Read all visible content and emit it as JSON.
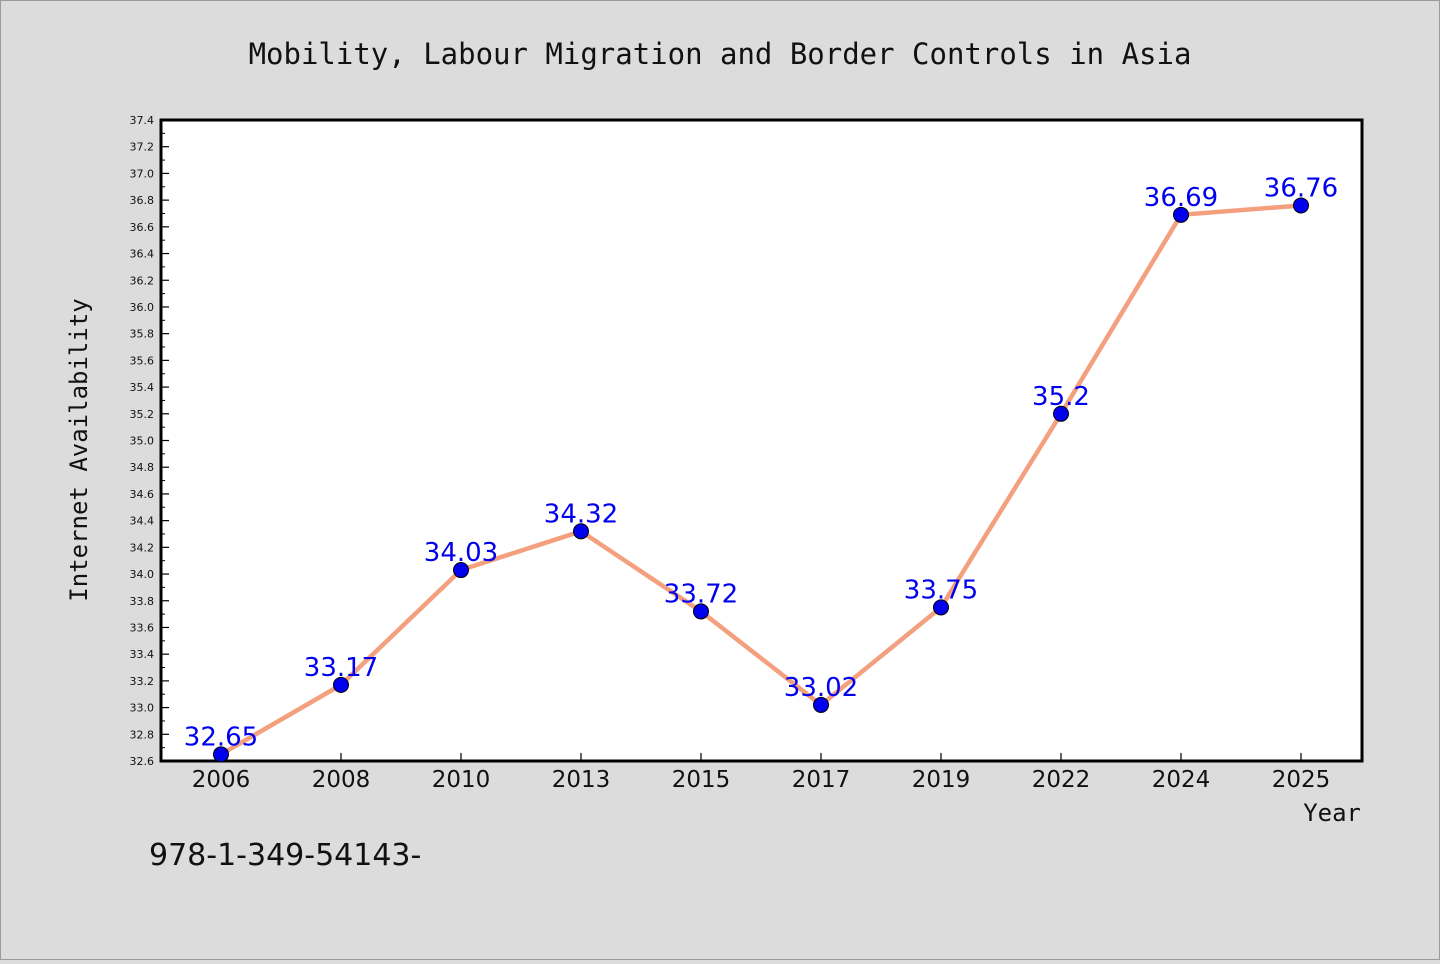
{
  "chart_data": {
    "type": "line",
    "title": "Mobility, Labour Migration and Border Controls in Asia",
    "xlabel": "Year",
    "ylabel": "Internet Availability",
    "categories": [
      "2006",
      "2008",
      "2010",
      "2013",
      "2015",
      "2017",
      "2019",
      "2022",
      "2024",
      "2025"
    ],
    "series": [
      {
        "values": [
          32.65,
          33.17,
          34.03,
          34.32,
          33.72,
          33.02,
          33.75,
          35.2,
          36.69,
          36.76
        ],
        "labels": [
          "32.65",
          "33.17",
          "34.03",
          "34.32",
          "33.72",
          "33.02",
          "33.75",
          "35.2",
          "36.69",
          "36.76"
        ],
        "line_color": "#f4a07e",
        "marker_color": "#0000ee"
      }
    ],
    "ylim": [
      32.6,
      37.4
    ],
    "yticks": [
      "32.6",
      "32.8",
      "33.0",
      "33.2",
      "33.4",
      "33.6",
      "33.8",
      "34.0",
      "34.2",
      "34.4",
      "34.6",
      "34.8",
      "35.0",
      "35.2",
      "35.4",
      "35.6",
      "35.8",
      "36.0",
      "36.2",
      "36.4",
      "36.6",
      "36.8",
      "37.0",
      "37.2",
      "37.4"
    ],
    "grid": false,
    "legend": "none",
    "background_color": "#dcdcdc",
    "plot_background": "#ffffff"
  },
  "footer": {
    "text": "978-1-349-54143-"
  }
}
